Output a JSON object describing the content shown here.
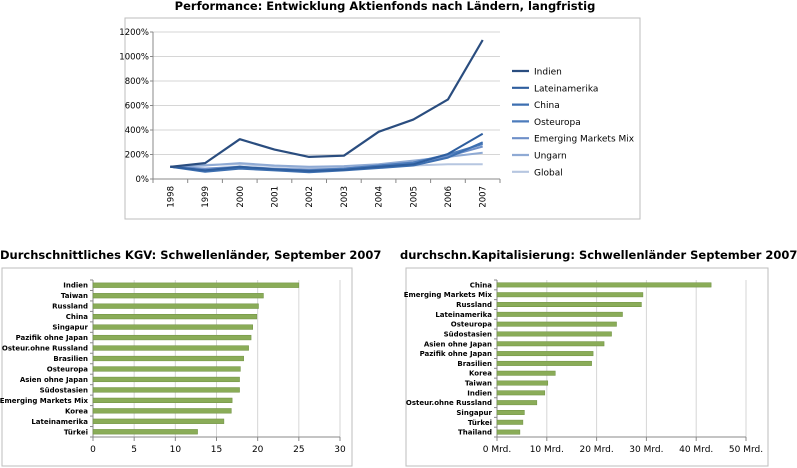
{
  "titles": {
    "line": "Performance: Entwicklung Aktienfonds nach Ländern, langfristig",
    "kgv": "Durchschnittliches KGV: Schwellenländer, September 2007",
    "kap": "durchschn.Kapitalisierung: Schwellenländer September 2007"
  },
  "colors": {
    "bar": "#8aac58",
    "bar_edge": "#6d8f3f",
    "axis": "#888888",
    "grid": "#d6d6d6",
    "frame": "#bdbdbd"
  },
  "chart_data": [
    {
      "type": "line",
      "title": "Performance: Entwicklung Aktienfonds nach Ländern, langfristig",
      "x": [
        "1998",
        "1999",
        "2000",
        "2001",
        "2002",
        "2003",
        "2004",
        "2005",
        "2006",
        "2007"
      ],
      "ylim": [
        0,
        1200
      ],
      "yticks": [
        0,
        200,
        400,
        600,
        800,
        1000,
        1200
      ],
      "ytick_labels": [
        "0%",
        "200%",
        "400%",
        "600%",
        "800%",
        "1000%",
        "1200%"
      ],
      "legend_position": "right",
      "series": [
        {
          "name": "Indien",
          "color": "#2a4d7f",
          "values": [
            100,
            130,
            325,
            240,
            180,
            190,
            385,
            485,
            650,
            1135
          ]
        },
        {
          "name": "Lateinamerika",
          "color": "#2e5e9e",
          "values": [
            100,
            70,
            100,
            80,
            65,
            75,
            100,
            120,
            205,
            370
          ]
        },
        {
          "name": "China",
          "color": "#3d6fb0",
          "values": [
            100,
            60,
            85,
            70,
            55,
            70,
            90,
            110,
            175,
            300
          ]
        },
        {
          "name": "Osteuropa",
          "color": "#4d7cbc",
          "values": [
            100,
            70,
            90,
            80,
            70,
            85,
            110,
            135,
            200,
            285
          ]
        },
        {
          "name": "Emerging Markets Mix",
          "color": "#6e8fc8",
          "values": [
            100,
            85,
            100,
            85,
            75,
            85,
            105,
            130,
            185,
            265
          ]
        },
        {
          "name": "Ungarn",
          "color": "#8faad4",
          "values": [
            100,
            110,
            130,
            110,
            100,
            105,
            120,
            150,
            180,
            215
          ]
        },
        {
          "name": "Global",
          "color": "#b6c6e0",
          "values": [
            100,
            115,
            120,
            105,
            90,
            95,
            105,
            110,
            120,
            120
          ]
        }
      ]
    },
    {
      "type": "bar",
      "orientation": "horizontal",
      "title": "Durchschnittliches KGV: Schwellenländer, September 2007",
      "categories": [
        "Indien",
        "Taiwan",
        "Russland",
        "China",
        "Singapur",
        "Pazifik ohne Japan",
        "Osteur.ohne Russland",
        "Brasilien",
        "Osteuropa",
        "Asien ohne Japan",
        "Südostasien",
        "Emerging Markets Mix",
        "Korea",
        "Lateinamerika",
        "Türkei"
      ],
      "values": [
        25.0,
        20.7,
        20.1,
        19.9,
        19.4,
        19.2,
        18.9,
        18.3,
        17.9,
        17.8,
        17.8,
        16.9,
        16.8,
        15.9,
        12.7
      ],
      "xlim": [
        0,
        30
      ],
      "xticks": [
        0,
        5,
        10,
        15,
        20,
        25,
        30
      ],
      "xtick_labels": [
        "0",
        "5",
        "10",
        "15",
        "20",
        "25",
        "30"
      ]
    },
    {
      "type": "bar",
      "orientation": "horizontal",
      "title": "durchschn.Kapitalisierung: Schwellenländer September 2007",
      "categories": [
        "China",
        "Emerging Markets Mix",
        "Russland",
        "Lateinamerika",
        "Osteuropa",
        "Südostasien",
        "Asien ohne Japan",
        "Pazifik ohne Japan",
        "Brasilien",
        "Korea",
        "Taiwan",
        "Indien",
        "Osteur.ohne Russland",
        "Singapur",
        "Türkei",
        "Thailand"
      ],
      "values": [
        43.0,
        29.3,
        29.0,
        25.2,
        24.0,
        23.0,
        21.5,
        19.3,
        19.0,
        11.7,
        10.2,
        9.6,
        8.0,
        5.5,
        5.2,
        4.6
      ],
      "unit": "Mrd.",
      "xlim": [
        0,
        50
      ],
      "xticks": [
        0,
        10,
        20,
        30,
        40,
        50
      ],
      "xtick_labels": [
        "0 Mrd.",
        "10 Mrd.",
        "20 Mrd.",
        "30 Mrd.",
        "40 Mrd.",
        "50 Mrd."
      ]
    }
  ]
}
